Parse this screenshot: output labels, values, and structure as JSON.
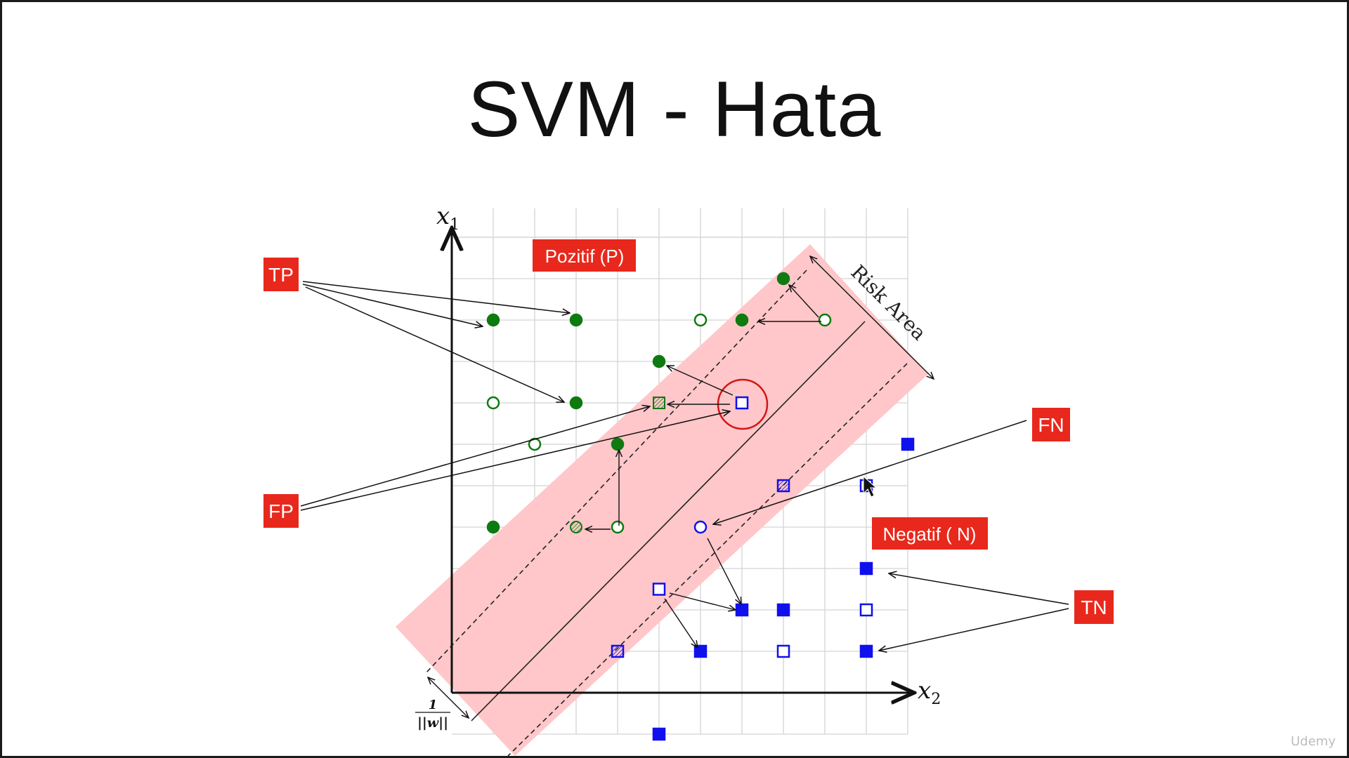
{
  "slide": {
    "title": "SVM - Hata",
    "watermark": "Udemy"
  },
  "axes": {
    "x_label": "x",
    "x_sub": "2",
    "y_label": "x",
    "y_sub": "1",
    "margin_num": "1",
    "margin_den": "||w||"
  },
  "labels": {
    "tp": "TP",
    "fp": "FP",
    "fn": "FN",
    "tn": "TN",
    "positive": "Pozitif (P)",
    "negative": "Negatif ( N)",
    "risk_area": "Risk Area"
  },
  "colors": {
    "tag_red": "#e8281c",
    "band_pink": "#ffc7c9",
    "positive_green": "#0e7a10",
    "negative_blue": "#1010ee",
    "highlight_red": "#d51515"
  },
  "points": [
    {
      "kind": "pos-filled",
      "gx": 1,
      "gy": 9
    },
    {
      "kind": "pos-filled",
      "gx": 3,
      "gy": 9
    },
    {
      "kind": "pos-open",
      "gx": 6,
      "gy": 9
    },
    {
      "kind": "pos-filled",
      "gx": 7,
      "gy": 9
    },
    {
      "kind": "pos-filled",
      "gx": 8,
      "gy": 10
    },
    {
      "kind": "pos-open",
      "gx": 9,
      "gy": 9
    },
    {
      "kind": "pos-filled",
      "gx": 5,
      "gy": 8
    },
    {
      "kind": "pos-open",
      "gx": 1,
      "gy": 7
    },
    {
      "kind": "pos-filled",
      "gx": 3,
      "gy": 7
    },
    {
      "kind": "pos-hatched",
      "gx": 5,
      "gy": 7
    },
    {
      "kind": "pos-open",
      "gx": 2,
      "gy": 6
    },
    {
      "kind": "pos-filled",
      "gx": 4,
      "gy": 6
    },
    {
      "kind": "pos-filled",
      "gx": 1,
      "gy": 4
    },
    {
      "kind": "pos-hatched",
      "gx": 3,
      "gy": 4
    },
    {
      "kind": "pos-open",
      "gx": 4,
      "gy": 4
    },
    {
      "kind": "neg-open",
      "gx": 7,
      "gy": 7
    },
    {
      "kind": "neg-filled",
      "gx": 11,
      "gy": 6
    },
    {
      "kind": "neg-hatched",
      "gx": 8,
      "gy": 5
    },
    {
      "kind": "neg-open",
      "gx": 10,
      "gy": 5
    },
    {
      "kind": "neg-circle",
      "gx": 6,
      "gy": 4
    },
    {
      "kind": "neg-filled",
      "gx": 10,
      "gy": 3
    },
    {
      "kind": "neg-open",
      "gx": 5,
      "gy": 2.5
    },
    {
      "kind": "neg-filled",
      "gx": 7,
      "gy": 2
    },
    {
      "kind": "neg-filled",
      "gx": 8,
      "gy": 2
    },
    {
      "kind": "neg-open",
      "gx": 10,
      "gy": 2
    },
    {
      "kind": "neg-hatched",
      "gx": 4,
      "gy": 1
    },
    {
      "kind": "neg-filled",
      "gx": 6,
      "gy": 1
    },
    {
      "kind": "neg-open",
      "gx": 8,
      "gy": 1
    },
    {
      "kind": "neg-filled",
      "gx": 10,
      "gy": 1
    },
    {
      "kind": "neg-filled",
      "gx": 5,
      "gy": -1
    }
  ]
}
